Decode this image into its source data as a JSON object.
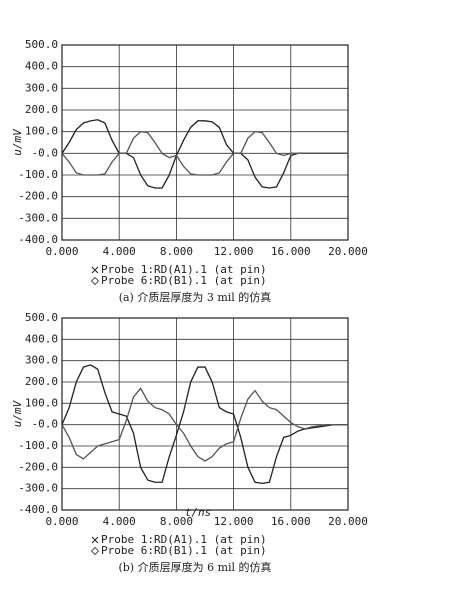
{
  "chart_data": [
    {
      "type": "line",
      "ylabel": "u/mV",
      "caption": "(a) 介质层厚度为 3 mil 的仿真",
      "x": [
        0,
        0.5,
        1,
        1.5,
        2,
        2.5,
        3,
        3.5,
        4,
        4.5,
        5,
        5.5,
        6,
        6.5,
        7,
        7.5,
        8,
        8.5,
        9,
        9.5,
        10,
        10.5,
        11,
        11.5,
        12,
        12.5,
        13,
        13.5,
        14,
        14.5,
        15,
        15.5,
        16,
        16.5,
        17,
        17.5,
        18,
        18.5,
        19,
        19.5,
        20
      ],
      "series": [
        {
          "name": "Probe 1:RD(A1).1 (at pin)",
          "marker": "x",
          "color": "#222",
          "values": [
            0,
            50,
            110,
            140,
            150,
            155,
            140,
            60,
            0,
            0,
            -20,
            -100,
            -150,
            -160,
            -160,
            -100,
            -10,
            60,
            120,
            150,
            150,
            145,
            120,
            40,
            0,
            0,
            -30,
            -110,
            -155,
            -160,
            -155,
            -90,
            -10,
            0,
            0,
            0,
            0,
            0,
            0,
            0,
            0
          ]
        },
        {
          "name": "Probe 6:RD(B1).1 (at pin)",
          "marker": "diamond",
          "color": "#555",
          "values": [
            0,
            -40,
            -90,
            -100,
            -100,
            -100,
            -95,
            -40,
            0,
            0,
            70,
            100,
            95,
            50,
            0,
            -20,
            -10,
            -60,
            -95,
            -100,
            -100,
            -100,
            -90,
            -40,
            0,
            0,
            70,
            100,
            95,
            50,
            0,
            -10,
            0,
            0,
            0,
            0,
            0,
            0,
            0,
            0,
            0
          ]
        }
      ],
      "xlim": [
        0,
        20
      ],
      "xticks": [
        {
          "value": 0,
          "label": "0.000"
        },
        {
          "value": 4,
          "label": "4.000"
        },
        {
          "value": 8,
          "label": "8.000"
        },
        {
          "value": 12,
          "label": "12.000"
        },
        {
          "value": 16,
          "label": "16.000"
        },
        {
          "value": 20,
          "label": "20.000"
        }
      ],
      "ylim": [
        -400,
        500
      ],
      "yticks": [
        {
          "value": 500,
          "label": "500.0"
        },
        {
          "value": 400,
          "label": "400.0"
        },
        {
          "value": 300,
          "label": "300.0"
        },
        {
          "value": 200,
          "label": "200.0"
        },
        {
          "value": 100,
          "label": "100.0"
        },
        {
          "value": 0,
          "label": "-0.0"
        },
        {
          "value": -100,
          "label": "-100.0"
        },
        {
          "value": -200,
          "label": "-200.0"
        },
        {
          "value": -300,
          "label": "-300.0"
        },
        {
          "value": -400,
          "label": "-400.0"
        }
      ],
      "grid": true
    },
    {
      "type": "line",
      "xlabel": "t/ns",
      "ylabel": "u/mV",
      "caption": "(b) 介质层厚度为 6 mil 的仿真",
      "x": [
        0,
        0.5,
        1,
        1.5,
        2,
        2.5,
        3,
        3.5,
        4,
        4.5,
        5,
        5.5,
        6,
        6.5,
        7,
        7.5,
        8,
        8.5,
        9,
        9.5,
        10,
        10.5,
        11,
        11.5,
        12,
        12.5,
        13,
        13.5,
        14,
        14.5,
        15,
        15.5,
        16,
        16.5,
        17,
        17.5,
        18,
        18.5,
        19,
        19.5,
        20
      ],
      "series": [
        {
          "name": "Probe 1:RD(A1).1 (at pin)",
          "marker": "x",
          "color": "#222",
          "values": [
            0,
            80,
            200,
            270,
            280,
            260,
            150,
            60,
            50,
            40,
            -40,
            -200,
            -260,
            -270,
            -270,
            -150,
            -50,
            60,
            200,
            270,
            270,
            200,
            80,
            60,
            50,
            -60,
            -200,
            -270,
            -275,
            -270,
            -150,
            -60,
            -50,
            -30,
            -20,
            -15,
            -10,
            -5,
            0,
            0,
            0
          ]
        },
        {
          "name": "Probe 6:RD(B1).1 (at pin)",
          "marker": "diamond",
          "color": "#555",
          "values": [
            0,
            -60,
            -140,
            -160,
            -130,
            -100,
            -90,
            -80,
            -70,
            20,
            130,
            170,
            110,
            80,
            70,
            50,
            0,
            -40,
            -100,
            -150,
            -170,
            -150,
            -110,
            -90,
            -80,
            30,
            120,
            160,
            110,
            80,
            70,
            40,
            10,
            -10,
            -20,
            -10,
            -5,
            0,
            0,
            0,
            0
          ]
        }
      ],
      "xlim": [
        0,
        20
      ],
      "xticks": [
        {
          "value": 0,
          "label": "0.000"
        },
        {
          "value": 4,
          "label": "4.000"
        },
        {
          "value": 8,
          "label": "8.000"
        },
        {
          "value": 12,
          "label": "12.000"
        },
        {
          "value": 16,
          "label": "16.000"
        },
        {
          "value": 20,
          "label": "20.000"
        }
      ],
      "ylim": [
        -400,
        500
      ],
      "yticks": [
        {
          "value": 500,
          "label": "500.0"
        },
        {
          "value": 400,
          "label": "400.0"
        },
        {
          "value": 300,
          "label": "300.0"
        },
        {
          "value": 200,
          "label": "200.0"
        },
        {
          "value": 100,
          "label": "100.0"
        },
        {
          "value": 0,
          "label": "-0.0"
        },
        {
          "value": -100,
          "label": "-100.0"
        },
        {
          "value": -200,
          "label": "-200.0"
        },
        {
          "value": -300,
          "label": "-300.0"
        },
        {
          "value": -400,
          "label": "-400.0"
        }
      ],
      "grid": true
    }
  ]
}
